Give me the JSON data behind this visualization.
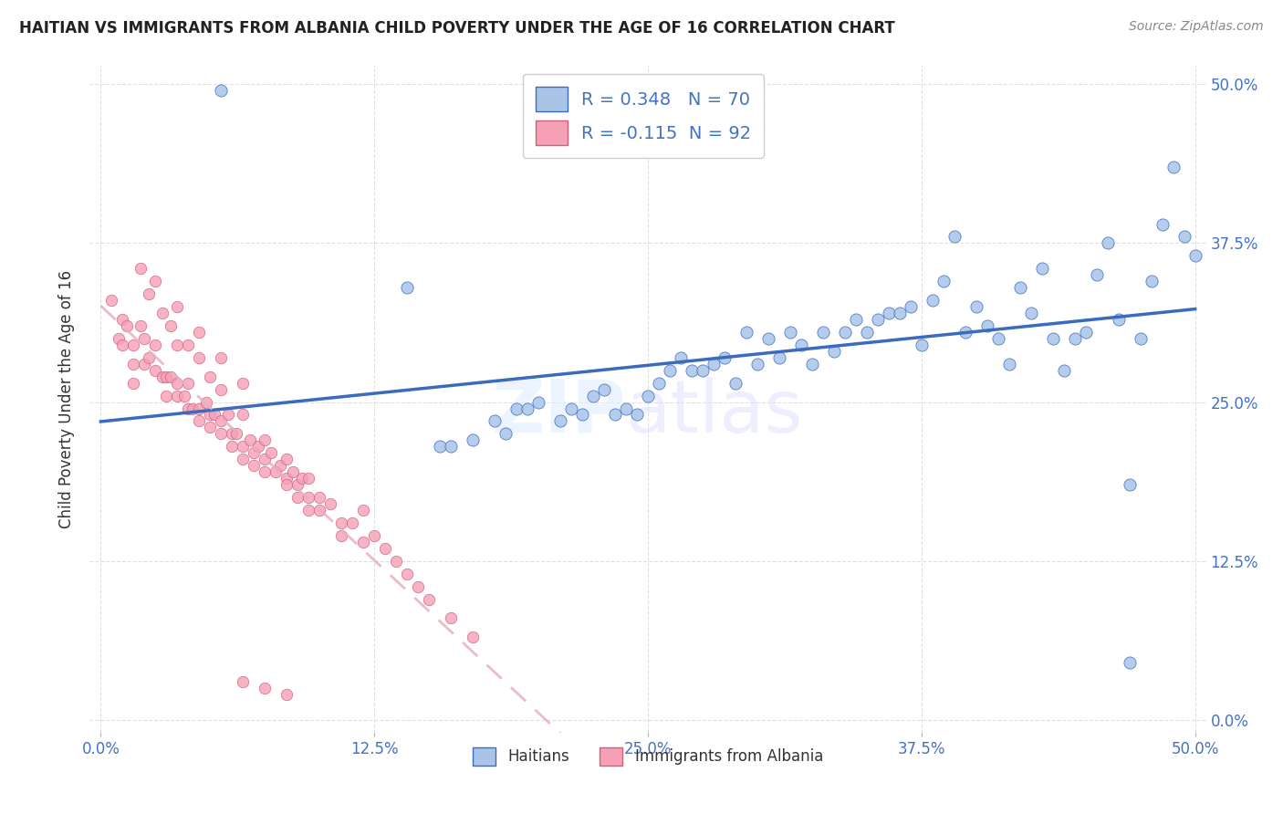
{
  "title": "HAITIAN VS IMMIGRANTS FROM ALBANIA CHILD POVERTY UNDER THE AGE OF 16 CORRELATION CHART",
  "source": "Source: ZipAtlas.com",
  "ylabel": "Child Poverty Under the Age of 16",
  "legend_label1": "Haitians",
  "legend_label2": "Immigrants from Albania",
  "R1": 0.348,
  "N1": 70,
  "R2": -0.115,
  "N2": 92,
  "color_blue": "#aac4e8",
  "color_pink": "#f5a0b5",
  "line_blue": "#3a6bbf",
  "line_pink": "#e8a0b8",
  "background_color": "#ffffff",
  "grid_color": "#cccccc",
  "blue_x": [
    0.055,
    0.14,
    0.155,
    0.16,
    0.17,
    0.18,
    0.185,
    0.19,
    0.195,
    0.2,
    0.21,
    0.215,
    0.22,
    0.225,
    0.23,
    0.235,
    0.24,
    0.245,
    0.25,
    0.255,
    0.26,
    0.265,
    0.27,
    0.275,
    0.28,
    0.285,
    0.29,
    0.295,
    0.3,
    0.305,
    0.31,
    0.315,
    0.32,
    0.325,
    0.33,
    0.335,
    0.34,
    0.345,
    0.35,
    0.355,
    0.36,
    0.365,
    0.37,
    0.375,
    0.38,
    0.385,
    0.39,
    0.395,
    0.4,
    0.405,
    0.41,
    0.415,
    0.42,
    0.425,
    0.43,
    0.435,
    0.44,
    0.445,
    0.45,
    0.455,
    0.46,
    0.465,
    0.47,
    0.475,
    0.48,
    0.485,
    0.49,
    0.495,
    0.5,
    0.47
  ],
  "blue_y": [
    0.495,
    0.34,
    0.215,
    0.215,
    0.22,
    0.235,
    0.225,
    0.245,
    0.245,
    0.25,
    0.235,
    0.245,
    0.24,
    0.255,
    0.26,
    0.24,
    0.245,
    0.24,
    0.255,
    0.265,
    0.275,
    0.285,
    0.275,
    0.275,
    0.28,
    0.285,
    0.265,
    0.305,
    0.28,
    0.3,
    0.285,
    0.305,
    0.295,
    0.28,
    0.305,
    0.29,
    0.305,
    0.315,
    0.305,
    0.315,
    0.32,
    0.32,
    0.325,
    0.295,
    0.33,
    0.345,
    0.38,
    0.305,
    0.325,
    0.31,
    0.3,
    0.28,
    0.34,
    0.32,
    0.355,
    0.3,
    0.275,
    0.3,
    0.305,
    0.35,
    0.375,
    0.315,
    0.185,
    0.3,
    0.345,
    0.39,
    0.435,
    0.38,
    0.365,
    0.045
  ],
  "pink_x": [
    0.005,
    0.008,
    0.01,
    0.01,
    0.012,
    0.015,
    0.015,
    0.015,
    0.018,
    0.02,
    0.02,
    0.022,
    0.025,
    0.025,
    0.028,
    0.03,
    0.03,
    0.032,
    0.035,
    0.035,
    0.038,
    0.04,
    0.04,
    0.042,
    0.045,
    0.045,
    0.048,
    0.05,
    0.05,
    0.052,
    0.055,
    0.055,
    0.058,
    0.06,
    0.06,
    0.062,
    0.065,
    0.065,
    0.068,
    0.07,
    0.07,
    0.072,
    0.075,
    0.075,
    0.078,
    0.08,
    0.082,
    0.085,
    0.085,
    0.088,
    0.09,
    0.09,
    0.092,
    0.095,
    0.095,
    0.1,
    0.1,
    0.105,
    0.11,
    0.11,
    0.115,
    0.12,
    0.125,
    0.13,
    0.135,
    0.14,
    0.145,
    0.15,
    0.16,
    0.17,
    0.018,
    0.022,
    0.028,
    0.032,
    0.035,
    0.04,
    0.045,
    0.05,
    0.055,
    0.065,
    0.075,
    0.085,
    0.095,
    0.025,
    0.035,
    0.045,
    0.055,
    0.065,
    0.12,
    0.065,
    0.075,
    0.085
  ],
  "pink_y": [
    0.33,
    0.3,
    0.315,
    0.295,
    0.31,
    0.295,
    0.28,
    0.265,
    0.31,
    0.3,
    0.28,
    0.285,
    0.295,
    0.275,
    0.27,
    0.27,
    0.255,
    0.27,
    0.265,
    0.255,
    0.255,
    0.265,
    0.245,
    0.245,
    0.245,
    0.235,
    0.25,
    0.24,
    0.23,
    0.24,
    0.235,
    0.225,
    0.24,
    0.225,
    0.215,
    0.225,
    0.215,
    0.205,
    0.22,
    0.21,
    0.2,
    0.215,
    0.205,
    0.195,
    0.21,
    0.195,
    0.2,
    0.19,
    0.185,
    0.195,
    0.185,
    0.175,
    0.19,
    0.175,
    0.165,
    0.175,
    0.165,
    0.17,
    0.155,
    0.145,
    0.155,
    0.14,
    0.145,
    0.135,
    0.125,
    0.115,
    0.105,
    0.095,
    0.08,
    0.065,
    0.355,
    0.335,
    0.32,
    0.31,
    0.295,
    0.295,
    0.285,
    0.27,
    0.26,
    0.24,
    0.22,
    0.205,
    0.19,
    0.345,
    0.325,
    0.305,
    0.285,
    0.265,
    0.165,
    0.03,
    0.025,
    0.02
  ]
}
